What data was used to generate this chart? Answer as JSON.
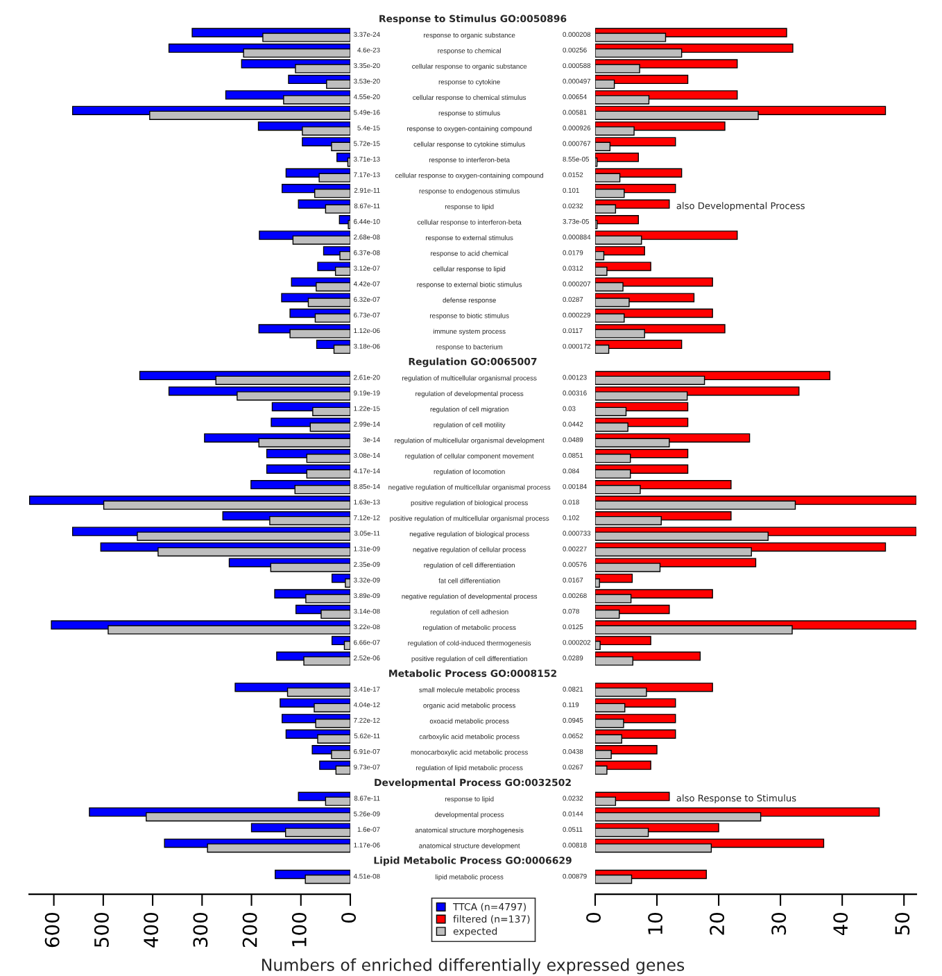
{
  "chart_data": [
    {
      "type": "bar",
      "orientation": "horizontal",
      "tick_labels": "x",
      "xlim": [
        650,
        0
      ],
      "xticks": [
        0,
        100,
        200,
        300,
        400,
        500,
        600
      ],
      "xlabel": "Numbers of enriched differentially expressed genes",
      "legend": "bottom",
      "categories": [
        null,
        "response to organic substance",
        "response to chemical",
        "cellular response to organic substance",
        "response to cytokine",
        "cellular response to chemical stimulus",
        "response to stimulus",
        "response to oxygen-containing compound",
        "cellular response to cytokine stimulus",
        "response to interferon-beta",
        "cellular response to oxygen-containing compound",
        "response to endogenous stimulus",
        "response to lipid",
        "cellular response to interferon-beta",
        "response to external stimulus",
        "response to acid chemical",
        "cellular response to lipid",
        "response to external biotic stimulus",
        "defense response",
        "response to biotic stimulus",
        "immune system process",
        "response to bacterium",
        null,
        "regulation of multicellular organismal process",
        "regulation of developmental process",
        "regulation of cell migration",
        "regulation of cell motility",
        "regulation of multicellular organismal development",
        "regulation of cellular component movement",
        "regulation of locomotion",
        "negative regulation of multicellular organismal process",
        "positive regulation of biological process",
        "positive regulation of multicellular organismal process",
        "negative regulation of biological process",
        "negative regulation of cellular process",
        "regulation of cell differentiation",
        "fat cell differentiation",
        "negative regulation of developmental process",
        "regulation of cell adhesion",
        "regulation of metabolic process",
        "regulation of cold-induced thermogenesis",
        "positive regulation of cell differentiation",
        null,
        "small molecule metabolic process",
        "organic acid metabolic process",
        "oxoacid metabolic process",
        "carboxylic acid metabolic process",
        "monocarboxylic acid metabolic process",
        "regulation of lipid metabolic process",
        null,
        "response to lipid",
        "developmental process",
        "anatomical structure morphogenesis",
        "anatomical structure development",
        null,
        "lipid metabolic process"
      ],
      "series": [
        {
          "name": "TTCA (n=4797)",
          "color": "#0000ff",
          "values": [
            null,
            320,
            367,
            220,
            125,
            252,
            562,
            186,
            97,
            27,
            130,
            138,
            105,
            22,
            184,
            54,
            66,
            119,
            139,
            122,
            185,
            68,
            null,
            426,
            367,
            158,
            160,
            295,
            169,
            169,
            201,
            649,
            258,
            562,
            505,
            245,
            37,
            153,
            110,
            605,
            37,
            149,
            null,
            233,
            142,
            138,
            130,
            77,
            62,
            null,
            105,
            528,
            200,
            376,
            null,
            152
          ]
        },
        {
          "name": "expected",
          "color": "#bebebe",
          "values": [
            null,
            177,
            216,
            111,
            48,
            135,
            406,
            97,
            38,
            5,
            63,
            72,
            50,
            4,
            116,
            21,
            30,
            69,
            85,
            71,
            122,
            33,
            null,
            272,
            229,
            76,
            81,
            185,
            88,
            88,
            112,
            499,
            163,
            431,
            389,
            161,
            10,
            90,
            59,
            490,
            12,
            94,
            null,
            127,
            73,
            70,
            66,
            38,
            29,
            null,
            50,
            413,
            131,
            289,
            null,
            91
          ]
        }
      ],
      "annotations": [
        "3.37e-24",
        "4.6e-23",
        "3.35e-20",
        "3.53e-20",
        "4.55e-20",
        "5.49e-16",
        "5.4e-15",
        "5.72e-15",
        "3.71e-13",
        "7.17e-13",
        "2.91e-11",
        "8.67e-11",
        "6.44e-10",
        "2.68e-08",
        "6.37e-08",
        "3.12e-07",
        "4.42e-07",
        "6.32e-07",
        "6.73e-07",
        "1.12e-06",
        "3.18e-06",
        "2.61e-20",
        "9.19e-19",
        "1.22e-15",
        "2.99e-14",
        "3e-14",
        "3.08e-14",
        "4.17e-14",
        "8.85e-14",
        "1.63e-13",
        "7.12e-12",
        "3.05e-11",
        "1.31e-09",
        "2.35e-09",
        "3.32e-09",
        "3.89e-09",
        "3.14e-08",
        "3.22e-08",
        "6.66e-07",
        "2.52e-06",
        "3.41e-17",
        "4.04e-12",
        "7.22e-12",
        "5.62e-11",
        "6.91e-07",
        "9.73e-07",
        "8.67e-11",
        "5.26e-09",
        "1.6e-07",
        "1.17e-06",
        "4.51e-08"
      ]
    },
    {
      "type": "bar",
      "orientation": "horizontal",
      "xlim": [
        0,
        52
      ],
      "xticks": [
        0,
        10,
        20,
        30,
        40,
        50
      ],
      "legend": "bottom",
      "categories": [
        null,
        "response to organic substance",
        "response to chemical",
        "cellular response to organic substance",
        "response to cytokine",
        "cellular response to chemical stimulus",
        "response to stimulus",
        "response to oxygen-containing compound",
        "cellular response to cytokine stimulus",
        "response to interferon-beta",
        "cellular response to oxygen-containing compound",
        "response to endogenous stimulus",
        "response to lipid",
        "cellular response to interferon-beta",
        "response to external stimulus",
        "response to acid chemical",
        "cellular response to lipid",
        "response to external biotic stimulus",
        "defense response",
        "response to biotic stimulus",
        "immune system process",
        "response to bacterium",
        null,
        "regulation of multicellular organismal process",
        "regulation of developmental process",
        "regulation of cell migration",
        "regulation of cell motility",
        "regulation of multicellular organismal development",
        "regulation of cellular component movement",
        "regulation of locomotion",
        "negative regulation of multicellular organismal process",
        "positive regulation of biological process",
        "positive regulation of multicellular organismal process",
        "negative regulation of biological process",
        "negative regulation of cellular process",
        "regulation of cell differentiation",
        "fat cell differentiation",
        "negative regulation of developmental process",
        "regulation of cell adhesion",
        "regulation of metabolic process",
        "regulation of cold-induced thermogenesis",
        "positive regulation of cell differentiation",
        null,
        "small molecule metabolic process",
        "organic acid metabolic process",
        "oxoacid metabolic process",
        "carboxylic acid metabolic process",
        "monocarboxylic acid metabolic process",
        "regulation of lipid metabolic process",
        null,
        "response to lipid",
        "developmental process",
        "anatomical structure morphogenesis",
        "anatomical structure development",
        null,
        "lipid metabolic process"
      ],
      "series": [
        {
          "name": "filtered (n=137)",
          "color": "#ff0000",
          "values": [
            null,
            31,
            32,
            23,
            15,
            23,
            47,
            21,
            13,
            7,
            14,
            13,
            12,
            7,
            23,
            8,
            9,
            19,
            16,
            19,
            21,
            14,
            null,
            38,
            33,
            15,
            15,
            25,
            15,
            15,
            22,
            52,
            22,
            52,
            47,
            26,
            6,
            19,
            12,
            52,
            9,
            17,
            null,
            19,
            13,
            13,
            13,
            10,
            9,
            null,
            12,
            46,
            20,
            37,
            null,
            18
          ]
        },
        {
          "name": "expected",
          "color": "#bebebe",
          "values": [
            null,
            11.4,
            14.0,
            7.2,
            3.1,
            8.7,
            26.4,
            6.3,
            2.4,
            0.3,
            4.0,
            4.7,
            3.3,
            0.3,
            7.5,
            1.4,
            1.9,
            4.5,
            5.5,
            4.7,
            8.0,
            2.2,
            null,
            17.7,
            14.9,
            5.0,
            5.3,
            12.0,
            5.7,
            5.7,
            7.3,
            32.4,
            10.7,
            28.0,
            25.3,
            10.5,
            0.7,
            5.8,
            3.9,
            31.9,
            0.8,
            6.1,
            null,
            8.3,
            4.8,
            4.6,
            4.3,
            2.6,
            1.9,
            null,
            3.3,
            26.8,
            8.6,
            18.8,
            null,
            5.9
          ]
        }
      ],
      "annotations": [
        "Response to Stimulus GO:0050896",
        "0.000208",
        "0.00256",
        "0.000588",
        "0.000497",
        "0.00654",
        "0.00581",
        "0.000926",
        "0.000767",
        "8.55e-05",
        "0.0152",
        "0.101",
        "0.0232",
        "3.73e-05",
        "0.000884",
        "0.0179",
        "0.0312",
        "0.000207",
        "0.0287",
        "0.000229",
        "0.0117",
        "0.000172",
        "Regulation GO:0065007",
        "0.00123",
        "0.00316",
        "0.03",
        "0.0442",
        "0.0489",
        "0.0851",
        "0.084",
        "0.00184",
        "0.018",
        "0.102",
        "0.000733",
        "0.00227",
        "0.00576",
        "0.0167",
        "0.00268",
        "0.078",
        "0.0125",
        "0.000202",
        "0.0289",
        "Metabolic Process GO:0008152",
        "0.0821",
        "0.119",
        "0.0945",
        "0.0652",
        "0.0438",
        "0.0267",
        "Developmental Process GO:0032502",
        "0.0232",
        "0.0144",
        "0.0511",
        "0.00818",
        "Lipid Metabolic Process GO:0006629",
        "0.00879",
        "also Developmental Process",
        "also Response to Stimulus"
      ]
    }
  ]
}
